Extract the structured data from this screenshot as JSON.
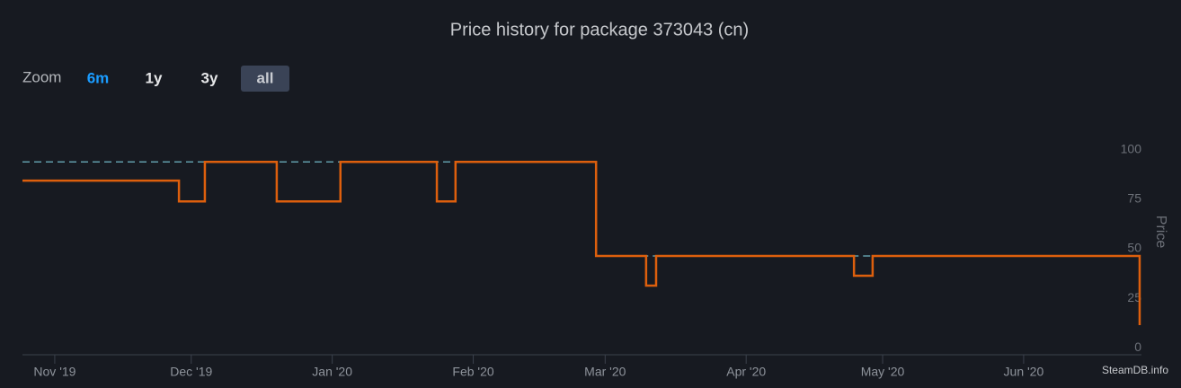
{
  "chart_data": {
    "type": "step",
    "title": "Price history for package 373043 (cn)",
    "zoom_label": "Zoom",
    "zoom_buttons": [
      "6m",
      "1y",
      "3y",
      "all"
    ],
    "zoom_selected": "all",
    "y_label": "Price",
    "credit": "SteamDB.info",
    "xlim": [
      -7.1,
      238.9
    ],
    "xticks": [
      {
        "value": 0,
        "label": "Nov '19"
      },
      {
        "value": 30,
        "label": "Dec '19"
      },
      {
        "value": 61,
        "label": "Jan '20"
      },
      {
        "value": 92,
        "label": "Feb '20"
      },
      {
        "value": 121,
        "label": "Mar '20"
      },
      {
        "value": 152,
        "label": "Apr '20"
      },
      {
        "value": 182,
        "label": "May '20"
      },
      {
        "value": 213,
        "label": "Jun '20"
      }
    ],
    "ylim": [
      -3.6,
      116
    ],
    "yticks": [
      0,
      25,
      50,
      75,
      100
    ],
    "grid": false,
    "series": [
      {
        "color": "#6fb6c4",
        "dashed": true,
        "x": [
          -7.1,
          119.0,
          238.5
        ],
        "values": [
          94,
          46.4,
          46.4
        ]
      },
      {
        "color": "#dd5f0d",
        "dashed": false,
        "x": [
          -7.1,
          27.3,
          33.0,
          48.8,
          62.8,
          84.0,
          88.1,
          119.0,
          130.0,
          132.2,
          175.7,
          179.8,
          238.5
        ],
        "values": [
          84.5,
          74,
          94,
          74,
          94,
          74,
          94,
          46.4,
          31.4,
          46.4,
          36.4,
          46.4,
          11.4
        ]
      }
    ]
  }
}
